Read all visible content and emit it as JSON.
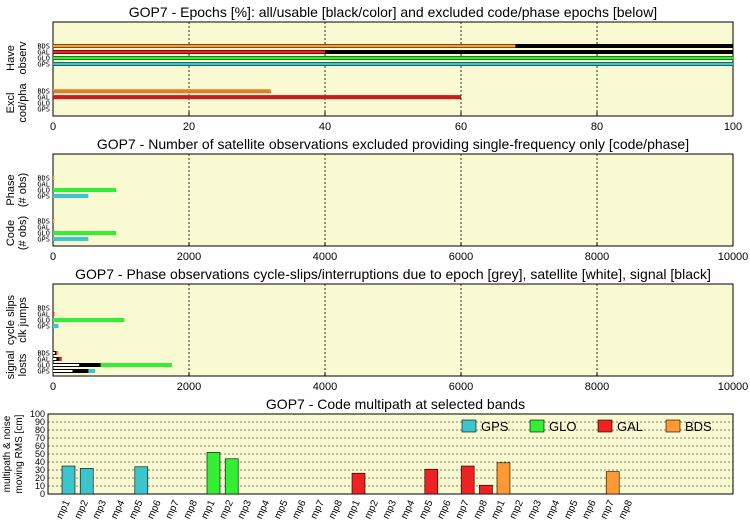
{
  "colors": {
    "GPS": "#3cc6cc",
    "GLO": "#33ee33",
    "GAL": "#ee2222",
    "BDS": "#ff9933",
    "panel_bg": "#fafad2"
  },
  "chart_data": [
    {
      "id": "epochs",
      "type": "bar",
      "title": "GOP7 - Epochs [%]: all/usable [black/color] and excluded code/phase epochs [below]",
      "xlim": [
        0,
        100
      ],
      "xticks": [
        "0",
        "20",
        "40",
        "60",
        "80",
        "100"
      ],
      "groups": [
        {
          "label": "Have observ",
          "systems": [
            "BDS",
            "GAL",
            "GLO",
            "GPS"
          ],
          "series": [
            {
              "name": "all",
              "values": [
                100,
                100,
                100,
                100
              ]
            },
            {
              "name": "usable",
              "values": [
                68,
                40,
                100,
                100
              ]
            }
          ]
        },
        {
          "label": "Excl cod/pha",
          "systems": [
            "BDS",
            "GAL",
            "GLO",
            "GPS"
          ],
          "series": [
            {
              "name": "code",
              "values": [
                32,
                60,
                0,
                0
              ]
            },
            {
              "name": "phase",
              "values": [
                32,
                60,
                0,
                0
              ]
            }
          ]
        }
      ]
    },
    {
      "id": "singlefreq",
      "type": "bar",
      "title": "GOP7 - Number of satellite observations excluded providing single-frequency only [code/phase]",
      "xlim": [
        0,
        10000
      ],
      "xticks": [
        "0",
        "2000",
        "4000",
        "6000",
        "8000",
        "10000"
      ],
      "groups": [
        {
          "label": "Phase (# obs)",
          "systems": [
            "BDS",
            "GAL",
            "GLO",
            "GPS"
          ],
          "values": [
            20,
            0,
            930,
            520
          ]
        },
        {
          "label": "Code (# obs)",
          "systems": [
            "BDS",
            "GAL",
            "GLO",
            "GPS"
          ],
          "values": [
            20,
            0,
            930,
            520
          ]
        }
      ]
    },
    {
      "id": "cycleslips",
      "type": "bar",
      "title": "GOP7 - Phase observations cycle-slips/interruptions due to epoch [grey], satellite [white], signal [black]",
      "xlim": [
        0,
        10000
      ],
      "xticks": [
        "0",
        "2000",
        "4000",
        "6000",
        "8000",
        "10000"
      ],
      "groups": [
        {
          "label": "cycle slips clk jumps",
          "systems": [
            "BDS",
            "GAL",
            "GLO",
            "GPS"
          ],
          "values": [
            0,
            20,
            1050,
            80
          ]
        },
        {
          "label": "signal losts",
          "systems": [
            "BDS",
            "GAL",
            "GLO",
            "GPS"
          ],
          "values": [
            80,
            130,
            1750,
            620
          ],
          "signal": [
            50,
            90,
            700,
            520
          ]
        }
      ]
    },
    {
      "id": "multipath",
      "type": "bar",
      "title": "GOP7 - Code multipath at selected bands",
      "ylabel": "multipath & noise moving RMS [cm]",
      "ylim": [
        0,
        100
      ],
      "yticks": [
        "0",
        "10",
        "20",
        "30",
        "40",
        "50",
        "60",
        "70",
        "80",
        "90",
        "100"
      ],
      "categories": [
        "mp1",
        "mp2",
        "mp3",
        "mp4",
        "mp5",
        "mp6",
        "mp7",
        "mp8"
      ],
      "series": [
        {
          "name": "GPS",
          "values": [
            35,
            32,
            0,
            0,
            34,
            0,
            0,
            0
          ]
        },
        {
          "name": "GLO",
          "values": [
            52,
            44,
            0,
            0,
            0,
            0,
            0,
            0
          ]
        },
        {
          "name": "GAL",
          "values": [
            26,
            0,
            0,
            0,
            31,
            0,
            35,
            11
          ]
        },
        {
          "name": "BDS",
          "values": [
            39,
            0,
            0,
            0,
            0,
            0,
            28,
            0
          ]
        }
      ],
      "legend": "top-right"
    }
  ]
}
